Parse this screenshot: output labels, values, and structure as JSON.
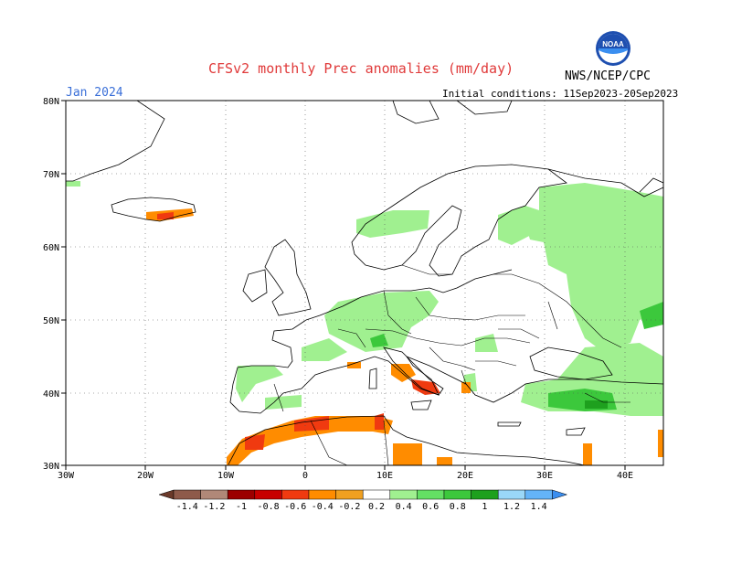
{
  "header": {
    "title": "CFSv2 monthly Prec anomalies (mm/day)",
    "valid_month": "Jan 2024",
    "initial_conditions": "Initial conditions: 11Sep2023-20Sep2023",
    "agency": "NWS/NCEP/CPC"
  },
  "logo": {
    "name": "noaa-logo",
    "text": "NOAA"
  },
  "map": {
    "projection": "cylindrical lat-lon",
    "lon_ticks": [
      "30W",
      "20W",
      "10W",
      "0",
      "10E",
      "20E",
      "30E",
      "40E"
    ],
    "lat_ticks": [
      "80N",
      "70N",
      "60N",
      "50N",
      "40N",
      "30N"
    ],
    "grid": "dotted"
  },
  "colorbar": {
    "labels": [
      "-1.4",
      "-1.2",
      "-1",
      "-0.8",
      "-0.6",
      "-0.4",
      "-0.2",
      "0.2",
      "0.4",
      "0.6",
      "0.8",
      "1",
      "1.2",
      "1.4"
    ],
    "colors": [
      "#6b3a2a",
      "#8e5a4a",
      "#b08878",
      "#9c0000",
      "#c80000",
      "#f03a10",
      "#ff8c00",
      "#f0a020",
      "#ffffff",
      "#a0f090",
      "#64e064",
      "#3cc83c",
      "#1ea01e",
      "#9ad8f8",
      "#64b4f8",
      "#3a8ef0"
    ]
  }
}
